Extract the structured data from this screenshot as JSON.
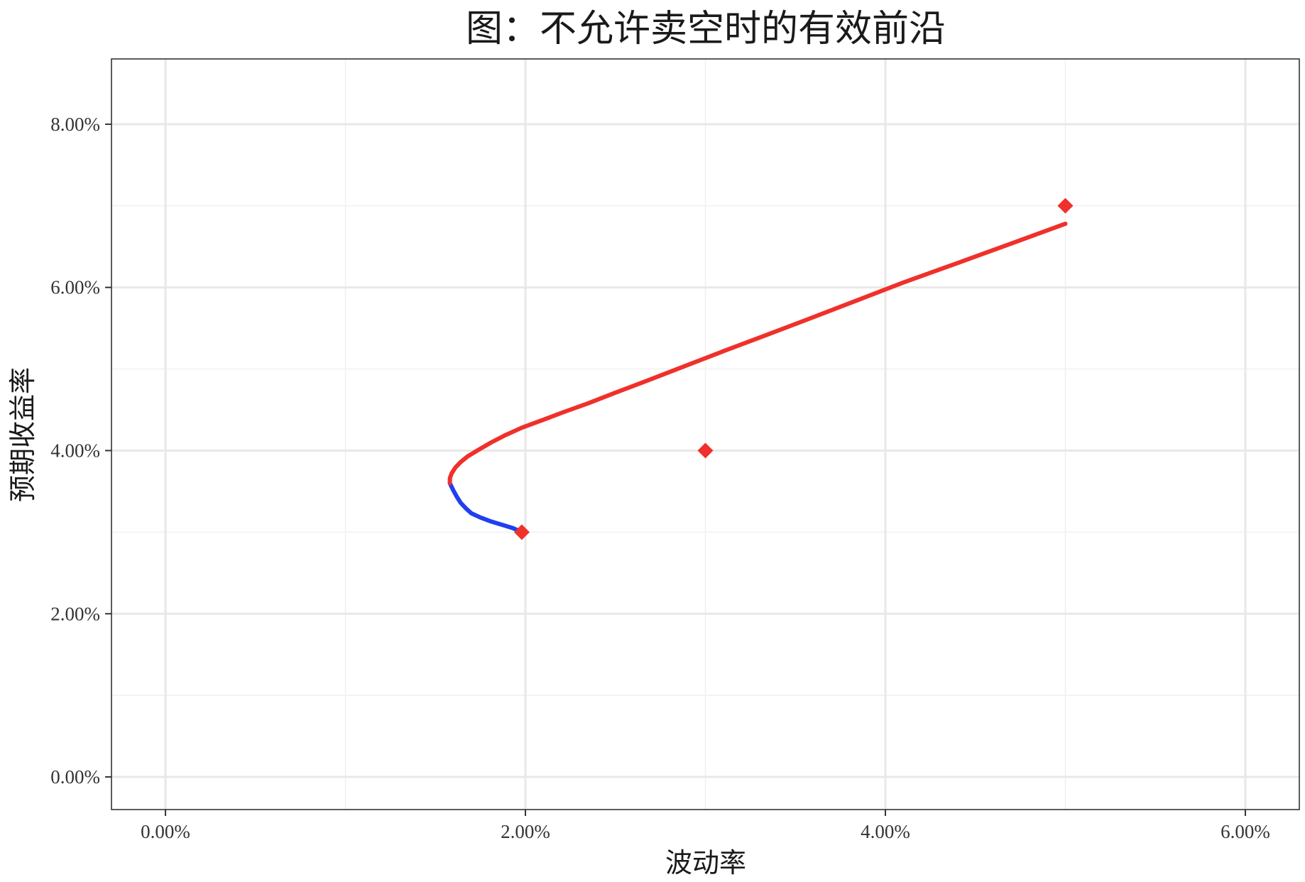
{
  "chart_data": {
    "type": "line",
    "title": "图：不允许卖空时的有效前沿",
    "xlabel": "波动率",
    "ylabel": "预期收益率",
    "xlim": [
      -0.003,
      0.063
    ],
    "ylim": [
      -0.004,
      0.088
    ],
    "x_ticks": [
      0,
      0.02,
      0.04,
      0.06
    ],
    "x_tick_labels": [
      "0.00%",
      "2.00%",
      "4.00%",
      "6.00%"
    ],
    "y_ticks": [
      0,
      0.02,
      0.04,
      0.06,
      0.08
    ],
    "y_tick_labels": [
      "0.00%",
      "2.00%",
      "4.00%",
      "6.00%",
      "8.00%"
    ],
    "x_minor_ticks": [
      0.01,
      0.03,
      0.05
    ],
    "y_minor_ticks": [
      0.01,
      0.03,
      0.05,
      0.07
    ],
    "grid": true,
    "legend": "none",
    "series": [
      {
        "color": "#1f3ff0",
        "x": [
          0.0198,
          0.0193,
          0.0187,
          0.0181,
          0.0175,
          0.017,
          0.0167,
          0.0164,
          0.0162,
          0.016,
          0.0158
        ],
        "y": [
          0.03,
          0.0305,
          0.0309,
          0.0313,
          0.0318,
          0.0323,
          0.0329,
          0.0336,
          0.0343,
          0.0351,
          0.036
        ]
      },
      {
        "color": "#f0302a",
        "x": [
          0.0158,
          0.0158,
          0.0159,
          0.0161,
          0.0164,
          0.0168,
          0.0174,
          0.0181,
          0.0189,
          0.0198,
          0.0209,
          0.0221,
          0.0235,
          0.025,
          0.0268,
          0.0288,
          0.0309,
          0.0332,
          0.0357,
          0.0383,
          0.041,
          0.0439,
          0.0469,
          0.05
        ],
        "y": [
          0.036,
          0.0366,
          0.0372,
          0.0379,
          0.0386,
          0.0393,
          0.0401,
          0.041,
          0.0419,
          0.0428,
          0.0437,
          0.0447,
          0.0458,
          0.0471,
          0.0486,
          0.0503,
          0.0521,
          0.054,
          0.0561,
          0.0583,
          0.0606,
          0.0629,
          0.0653,
          0.0678
        ]
      }
    ],
    "points": [
      {
        "x": 0.0198,
        "y": 0.03,
        "color": "#f0302a",
        "shape": "diamond"
      },
      {
        "x": 0.03,
        "y": 0.04,
        "color": "#f0302a",
        "shape": "diamond"
      },
      {
        "x": 0.05,
        "y": 0.07,
        "color": "#f0302a",
        "shape": "diamond"
      }
    ]
  }
}
